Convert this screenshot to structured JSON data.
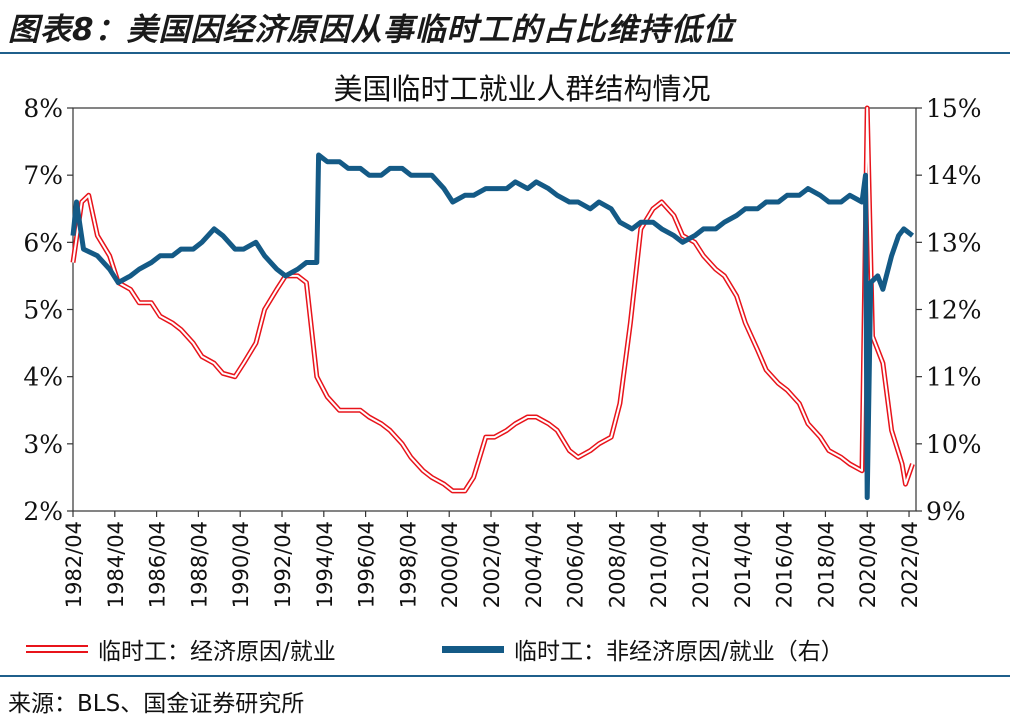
{
  "figure_title": "图表8：美国因经济原因从事临时工的占比维持低位",
  "source": "来源：BLS、国金证券研究所",
  "colors": {
    "red": "#e8141b",
    "blue": "#145a86",
    "rule": "#1f5f8b"
  },
  "chart_data": {
    "type": "line",
    "title": "美国临时工就业人群结构情况",
    "x_ticks": [
      "1982/04",
      "1984/04",
      "1986/04",
      "1988/04",
      "1990/04",
      "1992/04",
      "1994/04",
      "1996/04",
      "1998/04",
      "2000/04",
      "2002/04",
      "2004/04",
      "2006/04",
      "2008/04",
      "2010/04",
      "2012/04",
      "2014/04",
      "2016/04",
      "2018/04",
      "2020/04",
      "2022/04"
    ],
    "y_left": {
      "min": 2,
      "max": 8,
      "ticks": [
        "2%",
        "3%",
        "4%",
        "5%",
        "6%",
        "7%",
        "8%"
      ]
    },
    "y_right": {
      "min": 9,
      "max": 15,
      "ticks": [
        "9%",
        "10%",
        "11%",
        "12%",
        "13%",
        "14%",
        "15%"
      ]
    },
    "legend_position": "bottom",
    "series": [
      {
        "name": "临时工：经济原因/就业",
        "axis": "left",
        "points": [
          [
            "1982-04",
            5.7
          ],
          [
            "1982-09",
            6.6
          ],
          [
            "1983-01",
            6.7
          ],
          [
            "1983-06",
            6.1
          ],
          [
            "1984-01",
            5.8
          ],
          [
            "1984-06",
            5.4
          ],
          [
            "1985-01",
            5.3
          ],
          [
            "1985-06",
            5.1
          ],
          [
            "1986-01",
            5.1
          ],
          [
            "1986-06",
            4.9
          ],
          [
            "1987-01",
            4.8
          ],
          [
            "1987-06",
            4.7
          ],
          [
            "1988-01",
            4.5
          ],
          [
            "1988-06",
            4.3
          ],
          [
            "1989-01",
            4.2
          ],
          [
            "1989-06",
            4.05
          ],
          [
            "1990-01",
            4.0
          ],
          [
            "1990-06",
            4.2
          ],
          [
            "1991-01",
            4.5
          ],
          [
            "1991-06",
            5.0
          ],
          [
            "1992-01",
            5.3
          ],
          [
            "1992-06",
            5.5
          ],
          [
            "1993-01",
            5.5
          ],
          [
            "1993-06",
            5.4
          ],
          [
            "1993-12",
            4.0
          ],
          [
            "1994-06",
            3.7
          ],
          [
            "1995-01",
            3.5
          ],
          [
            "1995-06",
            3.5
          ],
          [
            "1996-01",
            3.5
          ],
          [
            "1996-06",
            3.4
          ],
          [
            "1997-01",
            3.3
          ],
          [
            "1997-06",
            3.2
          ],
          [
            "1998-01",
            3.0
          ],
          [
            "1998-06",
            2.8
          ],
          [
            "1999-01",
            2.6
          ],
          [
            "1999-06",
            2.5
          ],
          [
            "2000-01",
            2.4
          ],
          [
            "2000-06",
            2.3
          ],
          [
            "2001-01",
            2.3
          ],
          [
            "2001-06",
            2.5
          ],
          [
            "2002-01",
            3.1
          ],
          [
            "2002-06",
            3.1
          ],
          [
            "2003-01",
            3.2
          ],
          [
            "2003-06",
            3.3
          ],
          [
            "2004-01",
            3.4
          ],
          [
            "2004-06",
            3.4
          ],
          [
            "2005-01",
            3.3
          ],
          [
            "2005-06",
            3.2
          ],
          [
            "2006-01",
            2.9
          ],
          [
            "2006-06",
            2.8
          ],
          [
            "2007-01",
            2.9
          ],
          [
            "2007-06",
            3.0
          ],
          [
            "2008-01",
            3.1
          ],
          [
            "2008-06",
            3.6
          ],
          [
            "2008-12",
            4.8
          ],
          [
            "2009-06",
            6.2
          ],
          [
            "2010-01",
            6.5
          ],
          [
            "2010-06",
            6.6
          ],
          [
            "2011-01",
            6.4
          ],
          [
            "2011-06",
            6.1
          ],
          [
            "2012-01",
            6.0
          ],
          [
            "2012-06",
            5.8
          ],
          [
            "2013-01",
            5.6
          ],
          [
            "2013-06",
            5.5
          ],
          [
            "2014-01",
            5.2
          ],
          [
            "2014-06",
            4.8
          ],
          [
            "2015-01",
            4.4
          ],
          [
            "2015-06",
            4.1
          ],
          [
            "2016-01",
            3.9
          ],
          [
            "2016-06",
            3.8
          ],
          [
            "2017-01",
            3.6
          ],
          [
            "2017-06",
            3.3
          ],
          [
            "2018-01",
            3.1
          ],
          [
            "2018-06",
            2.9
          ],
          [
            "2019-01",
            2.8
          ],
          [
            "2019-06",
            2.7
          ],
          [
            "2020-01",
            2.6
          ],
          [
            "2020-04",
            8.0
          ],
          [
            "2020-07",
            4.6
          ],
          [
            "2021-01",
            4.2
          ],
          [
            "2021-06",
            3.2
          ],
          [
            "2021-12",
            2.7
          ],
          [
            "2022-02",
            2.4
          ],
          [
            "2022-06",
            2.7
          ]
        ]
      },
      {
        "name": "临时工：非经济原因/就业（右）",
        "axis": "right",
        "points": [
          [
            "1982-04",
            13.1
          ],
          [
            "1982-06",
            13.6
          ],
          [
            "1982-10",
            12.9
          ],
          [
            "1983-06",
            12.8
          ],
          [
            "1984-01",
            12.6
          ],
          [
            "1984-06",
            12.4
          ],
          [
            "1985-01",
            12.5
          ],
          [
            "1985-06",
            12.6
          ],
          [
            "1986-01",
            12.7
          ],
          [
            "1986-06",
            12.8
          ],
          [
            "1987-01",
            12.8
          ],
          [
            "1987-06",
            12.9
          ],
          [
            "1988-01",
            12.9
          ],
          [
            "1988-06",
            13.0
          ],
          [
            "1989-01",
            13.2
          ],
          [
            "1989-06",
            13.1
          ],
          [
            "1990-01",
            12.9
          ],
          [
            "1990-06",
            12.9
          ],
          [
            "1991-01",
            13.0
          ],
          [
            "1991-06",
            12.8
          ],
          [
            "1992-01",
            12.6
          ],
          [
            "1992-06",
            12.5
          ],
          [
            "1993-01",
            12.6
          ],
          [
            "1993-06",
            12.7
          ],
          [
            "1993-12",
            12.7
          ],
          [
            "1994-01",
            14.3
          ],
          [
            "1994-06",
            14.2
          ],
          [
            "1995-01",
            14.2
          ],
          [
            "1995-06",
            14.1
          ],
          [
            "1996-01",
            14.1
          ],
          [
            "1996-06",
            14.0
          ],
          [
            "1997-01",
            14.0
          ],
          [
            "1997-06",
            14.1
          ],
          [
            "1998-01",
            14.1
          ],
          [
            "1998-06",
            14.0
          ],
          [
            "1999-01",
            14.0
          ],
          [
            "1999-06",
            14.0
          ],
          [
            "2000-01",
            13.8
          ],
          [
            "2000-06",
            13.6
          ],
          [
            "2001-01",
            13.7
          ],
          [
            "2001-06",
            13.7
          ],
          [
            "2002-01",
            13.8
          ],
          [
            "2002-06",
            13.8
          ],
          [
            "2003-01",
            13.8
          ],
          [
            "2003-06",
            13.9
          ],
          [
            "2004-01",
            13.8
          ],
          [
            "2004-06",
            13.9
          ],
          [
            "2005-01",
            13.8
          ],
          [
            "2005-06",
            13.7
          ],
          [
            "2006-01",
            13.6
          ],
          [
            "2006-06",
            13.6
          ],
          [
            "2007-01",
            13.5
          ],
          [
            "2007-06",
            13.6
          ],
          [
            "2008-01",
            13.5
          ],
          [
            "2008-06",
            13.3
          ],
          [
            "2009-01",
            13.2
          ],
          [
            "2009-06",
            13.3
          ],
          [
            "2010-01",
            13.3
          ],
          [
            "2010-06",
            13.2
          ],
          [
            "2011-01",
            13.1
          ],
          [
            "2011-06",
            13.0
          ],
          [
            "2012-01",
            13.1
          ],
          [
            "2012-06",
            13.2
          ],
          [
            "2013-01",
            13.2
          ],
          [
            "2013-06",
            13.3
          ],
          [
            "2014-01",
            13.4
          ],
          [
            "2014-06",
            13.5
          ],
          [
            "2015-01",
            13.5
          ],
          [
            "2015-06",
            13.6
          ],
          [
            "2016-01",
            13.6
          ],
          [
            "2016-06",
            13.7
          ],
          [
            "2017-01",
            13.7
          ],
          [
            "2017-06",
            13.8
          ],
          [
            "2018-01",
            13.7
          ],
          [
            "2018-06",
            13.6
          ],
          [
            "2019-01",
            13.6
          ],
          [
            "2019-06",
            13.7
          ],
          [
            "2020-01",
            13.6
          ],
          [
            "2020-03",
            14.0
          ],
          [
            "2020-04",
            9.2
          ],
          [
            "2020-06",
            12.4
          ],
          [
            "2020-10",
            12.5
          ],
          [
            "2021-01",
            12.3
          ],
          [
            "2021-06",
            12.8
          ],
          [
            "2021-10",
            13.1
          ],
          [
            "2022-01",
            13.2
          ],
          [
            "2022-06",
            13.1
          ]
        ]
      }
    ]
  }
}
